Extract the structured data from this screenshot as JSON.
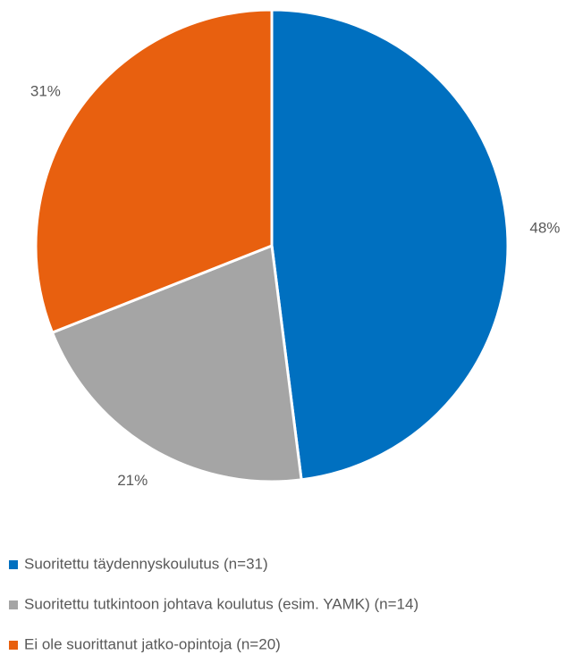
{
  "chart_data": {
    "type": "pie",
    "categories": [
      "Suoritettu täydennyskoulutus (n=31)",
      "Suoritettu tutkintoon johtava koulutus (esim. YAMK) (n=14)",
      "Ei ole suorittanut jatko-opintoja (n=20)"
    ],
    "values": [
      48,
      21,
      31
    ],
    "value_labels": [
      "48%",
      "21%",
      "31%"
    ],
    "colors": [
      "#0070c0",
      "#a5a5a5",
      "#e8600f"
    ],
    "legend": "bottom"
  }
}
